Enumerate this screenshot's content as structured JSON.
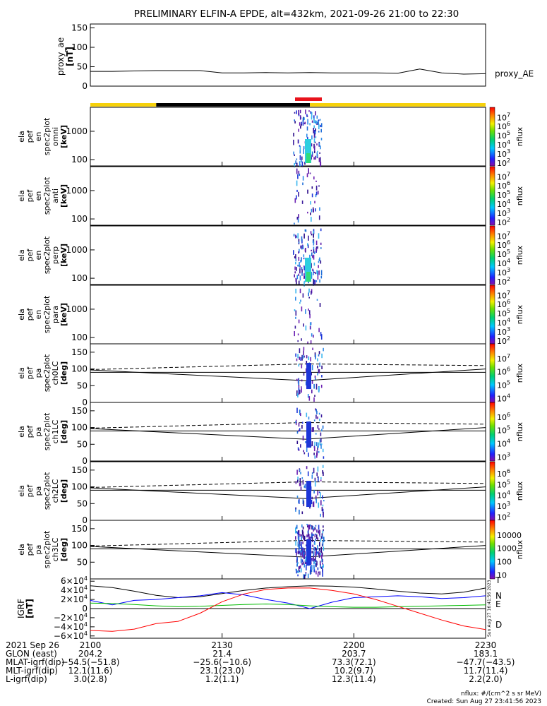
{
  "title": "PRELIMINARY ELFIN-A EPDE, alt=432km, 2021-09-26 21:00 to 22:30",
  "chart_data": [
    {
      "type": "line",
      "panel": "proxy_ae",
      "ylabel": [
        "proxy_ae",
        "[nT]"
      ],
      "yticks": [
        "0",
        "50",
        "100",
        "150"
      ],
      "ylim": [
        0,
        160
      ],
      "series": [
        {
          "name": "proxy_AE",
          "x": [
            0,
            5,
            10,
            15,
            20,
            25,
            30,
            35,
            40,
            45,
            50,
            55,
            60,
            65,
            70,
            75,
            80,
            85,
            90
          ],
          "values": [
            38,
            38,
            39,
            40,
            40,
            40,
            34,
            34,
            35,
            34,
            35,
            34,
            34,
            34,
            33,
            44,
            34,
            31,
            32
          ]
        }
      ]
    },
    {
      "type": "heatmap",
      "panel": "spectrogram",
      "ylabel": [
        "ela",
        "pef",
        "en",
        "spec2plot",
        "omni",
        "[keV]"
      ],
      "yticks": [
        "100",
        "1000"
      ],
      "colorbar": {
        "label": "nflux",
        "ticks": [
          "10^2",
          "10^3",
          "10^4",
          "10^5",
          "10^6",
          "10^7"
        ]
      }
    },
    {
      "type": "heatmap",
      "panel": "spectrogram",
      "ylabel": [
        "ela",
        "pef",
        "en",
        "spec2plot",
        "anti",
        "[keV]"
      ],
      "yticks": [
        "100",
        "1000"
      ],
      "colorbar": {
        "label": "nflux",
        "ticks": [
          "10^2",
          "10^3",
          "10^4",
          "10^5",
          "10^6",
          "10^7"
        ]
      }
    },
    {
      "type": "heatmap",
      "panel": "spectrogram",
      "ylabel": [
        "ela",
        "pef",
        "en",
        "spec2plot",
        "perp",
        "[keV]"
      ],
      "yticks": [
        "100",
        "1000"
      ],
      "colorbar": {
        "label": "nflux",
        "ticks": [
          "10^2",
          "10^3",
          "10^4",
          "10^5",
          "10^6",
          "10^7"
        ]
      }
    },
    {
      "type": "heatmap",
      "panel": "spectrogram",
      "ylabel": [
        "ela",
        "pef",
        "en",
        "spec2plot",
        "para",
        "[keV]"
      ],
      "yticks": [
        "100",
        "1000"
      ],
      "colorbar": {
        "label": "nflux",
        "ticks": [
          "10^2",
          "10^3",
          "10^4",
          "10^5",
          "10^6",
          "10^7"
        ]
      }
    },
    {
      "type": "heatmap",
      "panel": "pitch",
      "ylabel": [
        "ela",
        "pef",
        "pa",
        "spec2plot",
        "ch0LC",
        "[deg]"
      ],
      "yticks": [
        "0",
        "50",
        "100",
        "150"
      ],
      "colorbar": {
        "label": "nflux",
        "ticks": [
          "10^4",
          "10^5",
          "10^6",
          "10^7"
        ]
      }
    },
    {
      "type": "heatmap",
      "panel": "pitch",
      "ylabel": [
        "ela",
        "pef",
        "pa",
        "spec2plot",
        "ch1LC",
        "[deg]"
      ],
      "yticks": [
        "0",
        "50",
        "100",
        "150"
      ],
      "colorbar": {
        "label": "nflux",
        "ticks": [
          "10^3",
          "10^4",
          "10^5",
          "10^6"
        ]
      }
    },
    {
      "type": "heatmap",
      "panel": "pitch",
      "ylabel": [
        "ela",
        "pef",
        "pa",
        "spec2plot",
        "ch2LC",
        "[deg]"
      ],
      "yticks": [
        "0",
        "50",
        "100",
        "150"
      ],
      "colorbar": {
        "label": "nflux",
        "ticks": [
          "10^2",
          "10^3",
          "10^4",
          "10^5",
          "10^6"
        ]
      }
    },
    {
      "type": "heatmap",
      "panel": "pitch",
      "ylabel": [
        "ela",
        "pef",
        "pa",
        "spec2plot",
        "ch3LC",
        "[deg]"
      ],
      "yticks": [
        "50",
        "100",
        "150"
      ],
      "colorbar": {
        "label": "nflux",
        "ticks": [
          "10",
          "100",
          "1000",
          "10000"
        ]
      }
    },
    {
      "type": "line",
      "panel": "igrf",
      "ylabel": [
        "IGRF",
        "[nT]"
      ],
      "yticks": [
        "6×10^4",
        "4×10^4",
        "2×10^4",
        "0",
        "−2×10^4",
        "−4×10^4",
        "−6×10^4"
      ],
      "ylim": [
        -65000,
        65000
      ],
      "series": [
        {
          "name": "T",
          "color": "#000000",
          "x": [
            0,
            5,
            10,
            15,
            20,
            25,
            30,
            35,
            40,
            45,
            50,
            55,
            60,
            65,
            70,
            75,
            80,
            85,
            90
          ],
          "values": [
            50000,
            46000,
            38000,
            29000,
            24000,
            26000,
            33000,
            40000,
            45000,
            48000,
            50000,
            49000,
            47000,
            43000,
            38000,
            34000,
            32000,
            36000,
            45000
          ]
        },
        {
          "name": "N",
          "color": "#0000ff",
          "x": [
            0,
            5,
            10,
            15,
            20,
            25,
            30,
            35,
            40,
            45,
            50,
            55,
            60,
            65,
            70,
            75,
            80,
            85,
            90
          ],
          "values": [
            18000,
            8000,
            18000,
            20000,
            24000,
            28000,
            35000,
            30000,
            20000,
            12000,
            0,
            14000,
            24000,
            26000,
            28000,
            26000,
            22000,
            24000,
            28000
          ]
        },
        {
          "name": "E",
          "color": "#00bb00",
          "x": [
            0,
            5,
            10,
            15,
            20,
            25,
            30,
            35,
            40,
            45,
            50,
            55,
            60,
            65,
            70,
            75,
            80,
            85,
            90
          ],
          "values": [
            12000,
            11000,
            9000,
            6000,
            4000,
            5000,
            7000,
            9000,
            10000,
            9000,
            6000,
            4000,
            3000,
            3000,
            4000,
            5000,
            6000,
            7000,
            8000
          ]
        },
        {
          "name": "D",
          "color": "#ff0000",
          "x": [
            0,
            5,
            10,
            15,
            20,
            25,
            30,
            35,
            40,
            45,
            50,
            55,
            60,
            65,
            70,
            75,
            80,
            85,
            90
          ],
          "values": [
            -48000,
            -50000,
            -45000,
            -33000,
            -28000,
            -10000,
            15000,
            32000,
            42000,
            45000,
            45000,
            40000,
            32000,
            20000,
            5000,
            -10000,
            -25000,
            -38000,
            -46000
          ]
        }
      ]
    }
  ],
  "x_axis": {
    "header": [
      "2021 Sep 26",
      "GLON (east)",
      "MLAT-igrf(dip)",
      "MLT-igrf(dip)",
      "L-igrf(dip)"
    ],
    "columns": [
      {
        "time": "2100",
        "glon": "204.2",
        "mlat": "−54.5(−51.8)",
        "mlt": "12.1(11.6)",
        "l": "3.0(2.8)"
      },
      {
        "time": "2130",
        "glon": "21.4",
        "mlat": "−25.6(−10.6)",
        "mlt": "23.1(23.0)",
        "l": "1.2(1.1)"
      },
      {
        "time": "2200",
        "glon": "203.7",
        "mlat": "73.3(72.1)",
        "mlt": "10.2(9.7)",
        "l": "12.3(11.4)"
      },
      {
        "time": "2230",
        "glon": "183.1",
        "mlat": "−47.7(−43.5)",
        "mlt": "11.7(11.4)",
        "l": "2.2(2.0)"
      }
    ]
  },
  "side_stamp": "Sun Aug 27 16:41:56 2023",
  "footer": {
    "units": "nflux: #/(cm^2 s sr MeV)",
    "created": "Created: Sun Aug 27 23:41:56 2023"
  },
  "colors": {
    "status_yellow": "#f6d10b",
    "status_black": "#000000",
    "status_red": "#e8121b"
  }
}
